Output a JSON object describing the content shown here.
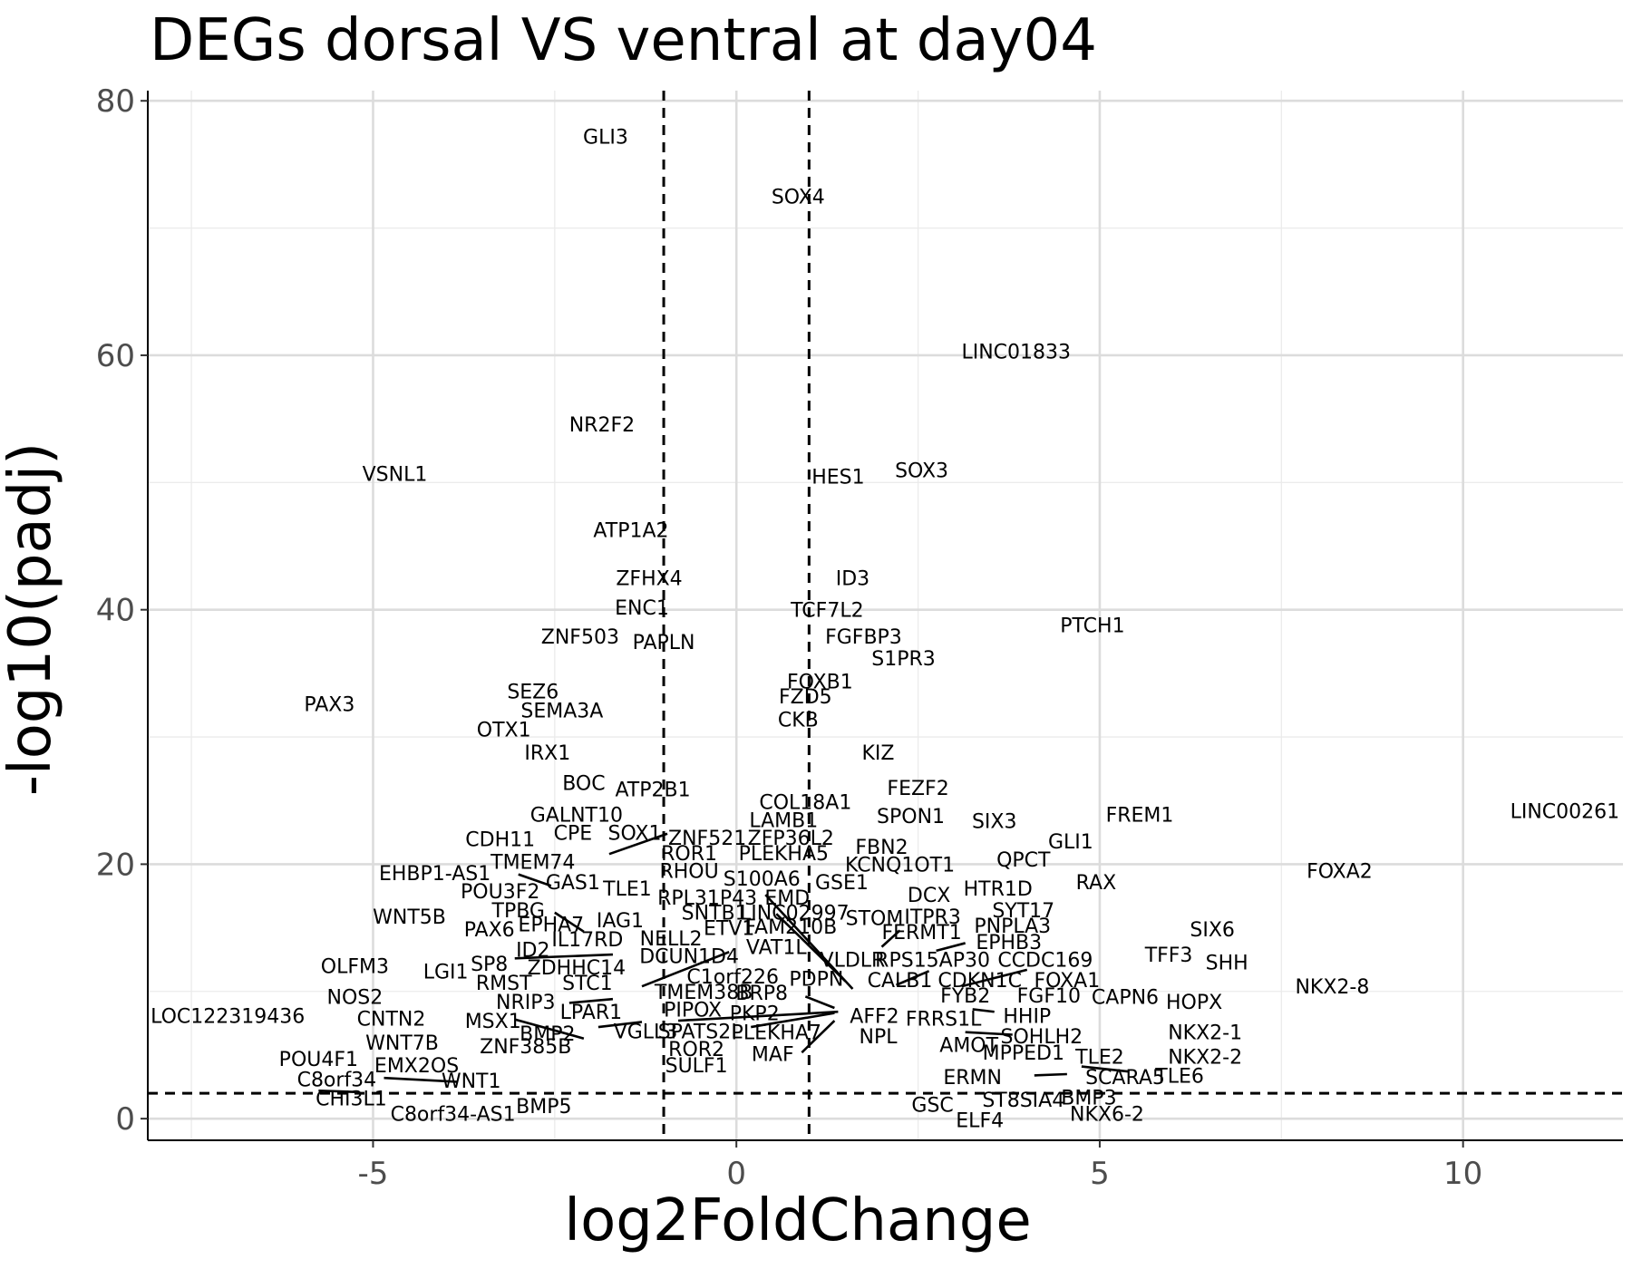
{
  "chart_data": {
    "type": "scatter",
    "title": "DEGs dorsal VS ventral at day04",
    "xlabel": "log2FoldChange",
    "ylabel": "-log10(padj)",
    "xlim": [
      -8.1,
      12.2
    ],
    "ylim": [
      -1.7,
      80.8
    ],
    "x_ticks": [
      -5,
      0,
      5,
      10
    ],
    "x_tick_labels": [
      "-5",
      "0",
      "5",
      "10"
    ],
    "y_ticks": [
      0,
      20,
      40,
      60,
      80
    ],
    "y_tick_labels": [
      "0",
      "20",
      "40",
      "60",
      "80"
    ],
    "grid": true,
    "legend": "none",
    "thresholds": {
      "vertical_x": [
        -1,
        1
      ],
      "horizontal_y": 2
    },
    "labels": [
      {
        "text": "GLI3",
        "x": -1.8,
        "y": 77.2
      },
      {
        "text": "SOX4",
        "x": 0.85,
        "y": 72.5
      },
      {
        "text": "LINC01833",
        "x": 3.85,
        "y": 60.3
      },
      {
        "text": "NR2F2",
        "x": -1.85,
        "y": 54.6
      },
      {
        "text": "VSNL1",
        "x": -4.7,
        "y": 50.7
      },
      {
        "text": "HES1",
        "x": 1.4,
        "y": 50.5
      },
      {
        "text": "SOX3",
        "x": 2.55,
        "y": 51.0
      },
      {
        "text": "ATP1A2",
        "x": -1.45,
        "y": 46.3
      },
      {
        "text": "ZFHX4",
        "x": -1.2,
        "y": 42.5
      },
      {
        "text": "ID3",
        "x": 1.6,
        "y": 42.5
      },
      {
        "text": "ENC1",
        "x": -1.3,
        "y": 40.2
      },
      {
        "text": "TCF7L2",
        "x": 1.25,
        "y": 40.0
      },
      {
        "text": "PTCH1",
        "x": 4.9,
        "y": 38.8
      },
      {
        "text": "ZNF503",
        "x": -2.15,
        "y": 37.9
      },
      {
        "text": "PAPLN",
        "x": -1.0,
        "y": 37.5
      },
      {
        "text": "FGFBP3",
        "x": 1.75,
        "y": 37.9
      },
      {
        "text": "S1PR3",
        "x": 2.3,
        "y": 36.2
      },
      {
        "text": "FOXB1",
        "x": 1.15,
        "y": 34.4
      },
      {
        "text": "SEZ6",
        "x": -2.8,
        "y": 33.6
      },
      {
        "text": "PAX3",
        "x": -5.6,
        "y": 32.6
      },
      {
        "text": "FZD5",
        "x": 0.95,
        "y": 33.2
      },
      {
        "text": "SEMA3A",
        "x": -2.4,
        "y": 32.1
      },
      {
        "text": "OTX1",
        "x": -3.2,
        "y": 30.6
      },
      {
        "text": "CKB",
        "x": 0.85,
        "y": 31.4
      },
      {
        "text": "IRX1",
        "x": -2.6,
        "y": 28.8
      },
      {
        "text": "KIZ",
        "x": 1.95,
        "y": 28.8
      },
      {
        "text": "BOC",
        "x": -2.1,
        "y": 26.4
      },
      {
        "text": "ATP2B1",
        "x": -1.15,
        "y": 25.9
      },
      {
        "text": "FEZF2",
        "x": 2.5,
        "y": 26.0
      },
      {
        "text": "COL18A1",
        "x": 0.95,
        "y": 24.9
      },
      {
        "text": "GALNT10",
        "x": -2.2,
        "y": 23.9
      },
      {
        "text": "SPON1",
        "x": 2.4,
        "y": 23.8
      },
      {
        "text": "LAMB1",
        "x": 0.65,
        "y": 23.5
      },
      {
        "text": "SIX3",
        "x": 3.55,
        "y": 23.4
      },
      {
        "text": "FREM1",
        "x": 5.55,
        "y": 23.9
      },
      {
        "text": "LINC00261",
        "x": 11.4,
        "y": 24.2
      },
      {
        "text": "CPE",
        "x": -2.25,
        "y": 22.5
      },
      {
        "text": "SOX1",
        "x": -1.4,
        "y": 22.5
      },
      {
        "text": "ZNF521",
        "x": -0.4,
        "y": 22.1
      },
      {
        "text": "ZFP36L2",
        "x": 0.75,
        "y": 22.1
      },
      {
        "text": "GLI1",
        "x": 4.6,
        "y": 21.8
      },
      {
        "text": "CDH11",
        "x": -3.25,
        "y": 22.0
      },
      {
        "text": "FBN2",
        "x": 2.0,
        "y": 21.4
      },
      {
        "text": "ROR1",
        "x": -0.65,
        "y": 20.9
      },
      {
        "text": "PLEKHA5",
        "x": 0.65,
        "y": 20.9
      },
      {
        "text": "QPCT",
        "x": 3.95,
        "y": 20.4
      },
      {
        "text": "TMEM74",
        "x": -2.8,
        "y": 20.2
      },
      {
        "text": "KCNQ1OT1",
        "x": 2.25,
        "y": 20.0
      },
      {
        "text": "FOXA2",
        "x": 8.3,
        "y": 19.5
      },
      {
        "text": "EHBP1-AS1",
        "x": -4.15,
        "y": 19.3
      },
      {
        "text": "RHOU",
        "x": -0.65,
        "y": 19.5
      },
      {
        "text": "S100A6",
        "x": 0.35,
        "y": 18.9
      },
      {
        "text": "GSE1",
        "x": 1.45,
        "y": 18.6
      },
      {
        "text": "RAX",
        "x": 4.95,
        "y": 18.6
      },
      {
        "text": "GAS1",
        "x": -2.25,
        "y": 18.6
      },
      {
        "text": "TLE1",
        "x": -1.5,
        "y": 18.1
      },
      {
        "text": "HTR1D",
        "x": 3.6,
        "y": 18.1
      },
      {
        "text": "POU3F2",
        "x": -3.25,
        "y": 17.9
      },
      {
        "text": "RPL31P43",
        "x": -0.4,
        "y": 17.4
      },
      {
        "text": "EMD",
        "x": 0.7,
        "y": 17.4
      },
      {
        "text": "DCX",
        "x": 2.65,
        "y": 17.6
      },
      {
        "text": "SYT17",
        "x": 3.95,
        "y": 16.4
      },
      {
        "text": "TPBG",
        "x": -3.0,
        "y": 16.4
      },
      {
        "text": "SNTB1",
        "x": -0.3,
        "y": 16.2
      },
      {
        "text": "LINC02997",
        "x": 0.8,
        "y": 16.2
      },
      {
        "text": "STOM",
        "x": 1.9,
        "y": 15.8
      },
      {
        "text": "ITPR3",
        "x": 2.7,
        "y": 15.9
      },
      {
        "text": "WNT5B",
        "x": -4.5,
        "y": 15.9
      },
      {
        "text": "IAG1",
        "x": -1.6,
        "y": 15.6
      },
      {
        "text": "EPHA7",
        "x": -2.55,
        "y": 15.3
      },
      {
        "text": "PNPLA3",
        "x": 3.8,
        "y": 15.2
      },
      {
        "text": "ETV1",
        "x": -0.1,
        "y": 15.0
      },
      {
        "text": "FAM210B",
        "x": 0.75,
        "y": 15.1
      },
      {
        "text": "PAX6",
        "x": -3.4,
        "y": 14.9
      },
      {
        "text": "FERMT1",
        "x": 2.55,
        "y": 14.7
      },
      {
        "text": "IL17RD",
        "x": -2.05,
        "y": 14.1
      },
      {
        "text": "NELL2",
        "x": -0.9,
        "y": 14.2
      },
      {
        "text": "EPHB3",
        "x": 3.75,
        "y": 13.9
      },
      {
        "text": "SIX6",
        "x": 6.55,
        "y": 14.9
      },
      {
        "text": "ID2",
        "x": -2.8,
        "y": 13.3
      },
      {
        "text": "VAT1L",
        "x": 0.55,
        "y": 13.5
      },
      {
        "text": "TFF3",
        "x": 5.95,
        "y": 12.9
      },
      {
        "text": "DCUN1D4",
        "x": -0.65,
        "y": 12.8
      },
      {
        "text": "VLDLR",
        "x": 1.6,
        "y": 12.5
      },
      {
        "text": "RPS15AP30",
        "x": 2.7,
        "y": 12.5
      },
      {
        "text": "CCDC169",
        "x": 4.25,
        "y": 12.5
      },
      {
        "text": "SHH",
        "x": 6.75,
        "y": 12.3
      },
      {
        "text": "OLFM3",
        "x": -5.25,
        "y": 12.0
      },
      {
        "text": "SP8",
        "x": -3.4,
        "y": 12.2
      },
      {
        "text": "ZDHHC14",
        "x": -2.2,
        "y": 11.9
      },
      {
        "text": "LGI1",
        "x": -4.0,
        "y": 11.6
      },
      {
        "text": "C1orf226",
        "x": -0.05,
        "y": 11.2
      },
      {
        "text": "PDPN",
        "x": 1.1,
        "y": 11.0
      },
      {
        "text": "CALB1",
        "x": 2.25,
        "y": 10.9
      },
      {
        "text": "CDKN1C",
        "x": 3.35,
        "y": 10.9
      },
      {
        "text": "FOXA1",
        "x": 4.55,
        "y": 10.9
      },
      {
        "text": "RMST",
        "x": -3.2,
        "y": 10.7
      },
      {
        "text": "STC1",
        "x": -2.05,
        "y": 10.7
      },
      {
        "text": "NKX2-8",
        "x": 8.2,
        "y": 10.4
      },
      {
        "text": "TMEM38B",
        "x": -0.45,
        "y": 10.0
      },
      {
        "text": "BRP8",
        "x": 0.35,
        "y": 9.9
      },
      {
        "text": "FYB2",
        "x": 3.15,
        "y": 9.7
      },
      {
        "text": "FGF10",
        "x": 4.3,
        "y": 9.7
      },
      {
        "text": "CAPN6",
        "x": 5.35,
        "y": 9.6
      },
      {
        "text": "NOS2",
        "x": -5.25,
        "y": 9.6
      },
      {
        "text": "NRIP3",
        "x": -2.9,
        "y": 9.2
      },
      {
        "text": "HOPX",
        "x": 6.3,
        "y": 9.2
      },
      {
        "text": "PIPOX",
        "x": -0.6,
        "y": 8.6
      },
      {
        "text": "LPAR1",
        "x": -2.0,
        "y": 8.4
      },
      {
        "text": "PKP2",
        "x": 0.25,
        "y": 8.3
      },
      {
        "text": "AFF2",
        "x": 1.9,
        "y": 8.1
      },
      {
        "text": "FRRS1L",
        "x": 2.85,
        "y": 7.9
      },
      {
        "text": "HHIP",
        "x": 4.0,
        "y": 8.1
      },
      {
        "text": "LOC122319436",
        "x": -7.0,
        "y": 8.1
      },
      {
        "text": "CNTN2",
        "x": -4.75,
        "y": 7.9
      },
      {
        "text": "MSX1",
        "x": -3.35,
        "y": 7.7
      },
      {
        "text": "VGLL3",
        "x": -1.25,
        "y": 6.9
      },
      {
        "text": "SPATS2L",
        "x": -0.5,
        "y": 6.9
      },
      {
        "text": "PLEKHA7",
        "x": 0.55,
        "y": 6.8
      },
      {
        "text": "NKX2-1",
        "x": 6.45,
        "y": 6.8
      },
      {
        "text": "BMP2",
        "x": -2.6,
        "y": 6.7
      },
      {
        "text": "SOHLH2",
        "x": 4.2,
        "y": 6.5
      },
      {
        "text": "NPL",
        "x": 1.95,
        "y": 6.5
      },
      {
        "text": "WNT7B",
        "x": -4.6,
        "y": 6.0
      },
      {
        "text": "ZNF385B",
        "x": -2.9,
        "y": 5.7
      },
      {
        "text": "ROR2",
        "x": -0.55,
        "y": 5.5
      },
      {
        "text": "AMOT",
        "x": 3.2,
        "y": 5.8
      },
      {
        "text": "MPPED1",
        "x": 3.95,
        "y": 5.2
      },
      {
        "text": "TLE2",
        "x": 5.0,
        "y": 4.9
      },
      {
        "text": "NKX2-2",
        "x": 6.45,
        "y": 4.9
      },
      {
        "text": "MAF",
        "x": 0.5,
        "y": 5.1
      },
      {
        "text": "POU4F1",
        "x": -5.75,
        "y": 4.7
      },
      {
        "text": "SULF1",
        "x": -0.55,
        "y": 4.2
      },
      {
        "text": "EMX2OS",
        "x": -4.4,
        "y": 4.2
      },
      {
        "text": "ERMN",
        "x": 3.25,
        "y": 3.3
      },
      {
        "text": "SCARA5",
        "x": 5.35,
        "y": 3.3
      },
      {
        "text": "TLE6",
        "x": 6.1,
        "y": 3.4
      },
      {
        "text": "C8orf34",
        "x": -5.5,
        "y": 3.1
      },
      {
        "text": "WNT1",
        "x": -3.65,
        "y": 3.0
      },
      {
        "text": "CHI3L1",
        "x": -5.3,
        "y": 1.6
      },
      {
        "text": "BMP3",
        "x": 4.85,
        "y": 1.7
      },
      {
        "text": "ST8SIA4",
        "x": 3.95,
        "y": 1.5
      },
      {
        "text": "GSC",
        "x": 2.7,
        "y": 1.1
      },
      {
        "text": "BMP5",
        "x": -2.65,
        "y": 1.0
      },
      {
        "text": "C8orf34-AS1",
        "x": -3.9,
        "y": 0.4
      },
      {
        "text": "NKX6-2",
        "x": 5.1,
        "y": 0.4
      },
      {
        "text": "ELF4",
        "x": 3.35,
        "y": -0.1
      }
    ],
    "connectors": [
      [
        -1.75,
        20.8,
        -0.95,
        22.4
      ],
      [
        -3.0,
        19.2,
        -2.55,
        18.3
      ],
      [
        -2.5,
        16.2,
        -2.1,
        14.7
      ],
      [
        0.4,
        17.6,
        1.6,
        10.2
      ],
      [
        0.55,
        16.1,
        1.5,
        10.8
      ],
      [
        -3.05,
        12.6,
        -1.7,
        12.9
      ],
      [
        -1.3,
        10.4,
        -0.1,
        13.1
      ],
      [
        -2.3,
        9.1,
        -1.7,
        9.4
      ],
      [
        -0.8,
        7.7,
        1.4,
        8.4
      ],
      [
        0.2,
        7.2,
        1.35,
        8.3
      ],
      [
        0.95,
        9.6,
        1.35,
        8.7
      ],
      [
        -3.05,
        7.8,
        -2.1,
        6.3
      ],
      [
        -1.9,
        7.2,
        -1.3,
        7.6
      ],
      [
        0.9,
        5.2,
        1.35,
        7.7
      ],
      [
        2.2,
        10.5,
        2.65,
        11.6
      ],
      [
        3.1,
        10.4,
        4.0,
        11.7
      ],
      [
        2.0,
        13.5,
        2.25,
        14.8
      ],
      [
        2.75,
        13.2,
        3.15,
        13.8
      ],
      [
        3.15,
        6.8,
        3.8,
        6.6
      ],
      [
        3.25,
        8.6,
        3.55,
        8.4
      ],
      [
        4.1,
        3.4,
        4.55,
        3.5
      ],
      [
        4.75,
        4.1,
        5.4,
        3.7
      ],
      [
        -4.85,
        3.2,
        -3.85,
        2.9
      ],
      [
        -5.75,
        2.2,
        -5.25,
        2.1
      ]
    ]
  }
}
